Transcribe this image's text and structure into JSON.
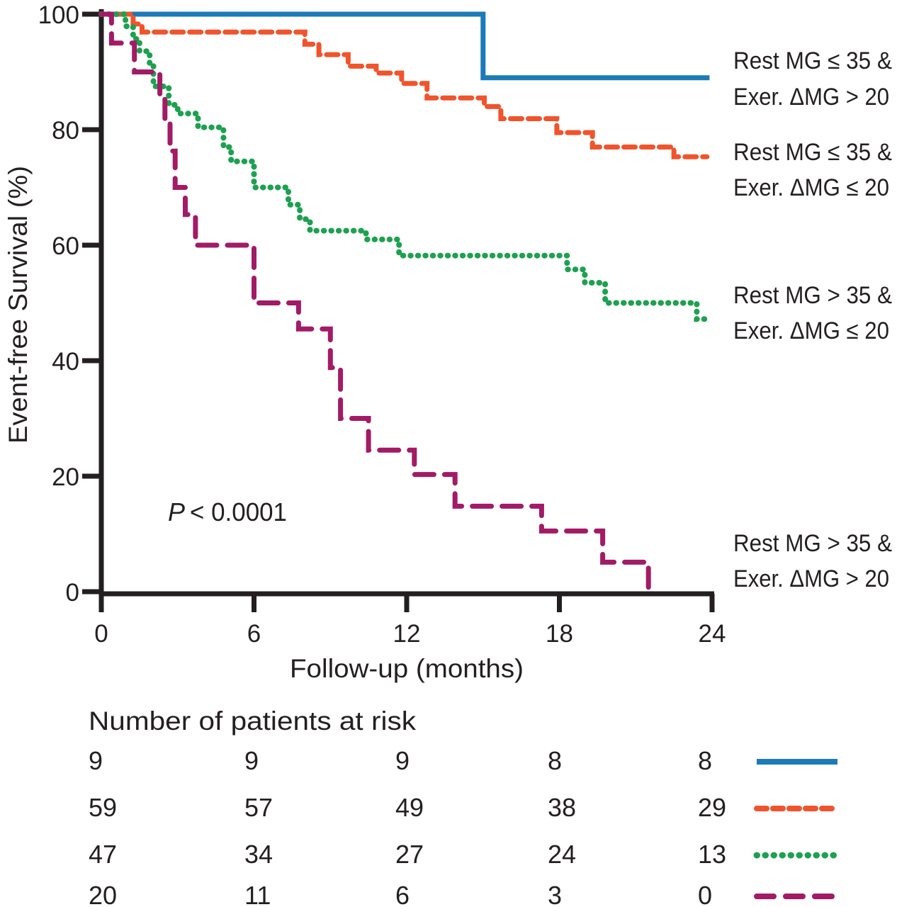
{
  "figure": {
    "p_parts": [
      "P",
      "< 0.0001"
    ]
  },
  "chart_data": {
    "type": "line",
    "subtype": "kaplan-meier-step",
    "title": "",
    "xlabel": "Follow-up (months)",
    "ylabel": "Event-free Survival (%)",
    "xlim": [
      0,
      24
    ],
    "ylim": [
      0,
      100
    ],
    "x_ticks": [
      0,
      6,
      12,
      18,
      24
    ],
    "y_ticks": [
      100,
      80,
      60,
      40,
      20,
      0
    ],
    "x_tick_labels": [
      "0",
      "6",
      "12",
      "18",
      "24"
    ],
    "y_tick_labels": [
      "100",
      "80",
      "60",
      "40",
      "20",
      "0"
    ],
    "grid": false,
    "legend_position": "right-outside",
    "annotation": "P < 0.0001",
    "series": [
      {
        "name": "Rest MG ≤ 35 & Exer. ΔMG > 20",
        "color": "#1b7ab8",
        "style": "solid",
        "points": [
          [
            0,
            100
          ],
          [
            15,
            100
          ],
          [
            15,
            89
          ],
          [
            23.9,
            89
          ]
        ]
      },
      {
        "name": "Rest MG ≤ 35 & Exer. ΔMG ≤ 20",
        "color": "#f0542c",
        "style": "dashed",
        "points": [
          [
            0,
            100
          ],
          [
            1.25,
            100
          ],
          [
            1.25,
            98.3
          ],
          [
            1.6,
            98.3
          ],
          [
            1.6,
            96.9
          ],
          [
            8,
            96.9
          ],
          [
            8,
            94.8
          ],
          [
            8.55,
            94.8
          ],
          [
            8.55,
            93
          ],
          [
            9.7,
            93
          ],
          [
            9.7,
            91
          ],
          [
            10.8,
            91
          ],
          [
            10.8,
            89.8
          ],
          [
            11.8,
            89.8
          ],
          [
            11.8,
            88
          ],
          [
            12.8,
            88
          ],
          [
            12.8,
            85.5
          ],
          [
            15.05,
            85.5
          ],
          [
            15.05,
            84
          ],
          [
            15.7,
            84
          ],
          [
            15.7,
            81.9
          ],
          [
            17.9,
            81.9
          ],
          [
            17.9,
            79.5
          ],
          [
            19.3,
            79.5
          ],
          [
            19.3,
            77
          ],
          [
            22.5,
            77
          ],
          [
            22.5,
            75.3
          ],
          [
            23.8,
            75.3
          ]
        ]
      },
      {
        "name": "Rest MG > 35 & Exer. ΔMG ≤ 20",
        "color": "#1da150",
        "style": "dotted",
        "points": [
          [
            0,
            100
          ],
          [
            0.95,
            100
          ],
          [
            0.95,
            97.9
          ],
          [
            1.25,
            97.9
          ],
          [
            1.25,
            95.7
          ],
          [
            1.5,
            95.7
          ],
          [
            1.5,
            93.6
          ],
          [
            1.9,
            93.6
          ],
          [
            1.9,
            91.4
          ],
          [
            2.05,
            91.4
          ],
          [
            2.05,
            87.5
          ],
          [
            2.65,
            87.5
          ],
          [
            2.65,
            84.3
          ],
          [
            3,
            84.3
          ],
          [
            3,
            82.8
          ],
          [
            3.8,
            82.8
          ],
          [
            3.8,
            80.4
          ],
          [
            4.8,
            80.4
          ],
          [
            4.8,
            77
          ],
          [
            5.1,
            77
          ],
          [
            5.1,
            74.5
          ],
          [
            6,
            74.5
          ],
          [
            6,
            70
          ],
          [
            7.35,
            70
          ],
          [
            7.35,
            67
          ],
          [
            7.8,
            67
          ],
          [
            7.8,
            64.5
          ],
          [
            8.2,
            64.5
          ],
          [
            8.2,
            62.5
          ],
          [
            10.4,
            62.5
          ],
          [
            10.4,
            61
          ],
          [
            11.7,
            61
          ],
          [
            11.7,
            58.2
          ],
          [
            18.3,
            58.2
          ],
          [
            18.3,
            55.8
          ],
          [
            19,
            55.8
          ],
          [
            19,
            53.5
          ],
          [
            19.8,
            53.5
          ],
          [
            19.8,
            50
          ],
          [
            23.4,
            50
          ],
          [
            23.4,
            47.2
          ],
          [
            23.9,
            47.2
          ]
        ]
      },
      {
        "name": "Rest MG > 35 & Exer. ΔMG > 20",
        "color": "#a21b66",
        "style": "long-dash",
        "points": [
          [
            0,
            100
          ],
          [
            0.4,
            100
          ],
          [
            0.4,
            95
          ],
          [
            1.3,
            95
          ],
          [
            1.3,
            90
          ],
          [
            2.3,
            90
          ],
          [
            2.3,
            86
          ],
          [
            2.5,
            86
          ],
          [
            2.5,
            81.3
          ],
          [
            2.7,
            81.3
          ],
          [
            2.7,
            76.3
          ],
          [
            2.9,
            76.3
          ],
          [
            2.9,
            70
          ],
          [
            3.3,
            70
          ],
          [
            3.3,
            65.3
          ],
          [
            3.7,
            65.3
          ],
          [
            3.7,
            60
          ],
          [
            6,
            60
          ],
          [
            6,
            50
          ],
          [
            7.75,
            50
          ],
          [
            7.75,
            45.5
          ],
          [
            9,
            45.5
          ],
          [
            9,
            38.8
          ],
          [
            9.4,
            38.8
          ],
          [
            9.4,
            30
          ],
          [
            10.5,
            30
          ],
          [
            10.5,
            24.5
          ],
          [
            12.3,
            24.5
          ],
          [
            12.3,
            20.3
          ],
          [
            13.9,
            20.3
          ],
          [
            13.9,
            14.8
          ],
          [
            17.3,
            14.8
          ],
          [
            17.3,
            10.5
          ],
          [
            19.7,
            10.5
          ],
          [
            19.7,
            5.1
          ],
          [
            21.5,
            5.1
          ],
          [
            21.5,
            0
          ]
        ]
      }
    ]
  },
  "legend": {
    "items": [
      {
        "line1": "Rest MG ≤ 35 &",
        "line2": "Exer. ΔMG > 20"
      },
      {
        "line1": "Rest MG ≤ 35 &",
        "line2": "Exer. ΔMG ≤ 20"
      },
      {
        "line1": "Rest MG > 35 &",
        "line2": "Exer. ΔMG ≤ 20"
      },
      {
        "line1": "Rest MG > 35 &",
        "line2": "Exer. ΔMG > 20"
      }
    ]
  },
  "risk_table": {
    "title": "Number of patients at risk",
    "time_points": [
      0,
      6,
      12,
      18,
      24
    ],
    "rows": [
      {
        "group": "Rest MG ≤ 35 & Exer. ΔMG > 20",
        "style": "solid",
        "color": "#1b7ab8",
        "counts": [
          "9",
          "9",
          "9",
          "8",
          "8"
        ]
      },
      {
        "group": "Rest MG ≤ 35 & Exer. ΔMG ≤ 20",
        "style": "dashed",
        "color": "#f0542c",
        "counts": [
          "59",
          "57",
          "49",
          "38",
          "29"
        ]
      },
      {
        "group": "Rest MG > 35 & Exer. ΔMG ≤ 20",
        "style": "dotted",
        "color": "#1da150",
        "counts": [
          "47",
          "34",
          "27",
          "24",
          "13"
        ]
      },
      {
        "group": "Rest MG > 35 & Exer. ΔMG > 20",
        "style": "long-dash",
        "color": "#a21b66",
        "counts": [
          "20",
          "11",
          "6",
          "3",
          "0"
        ]
      }
    ]
  }
}
